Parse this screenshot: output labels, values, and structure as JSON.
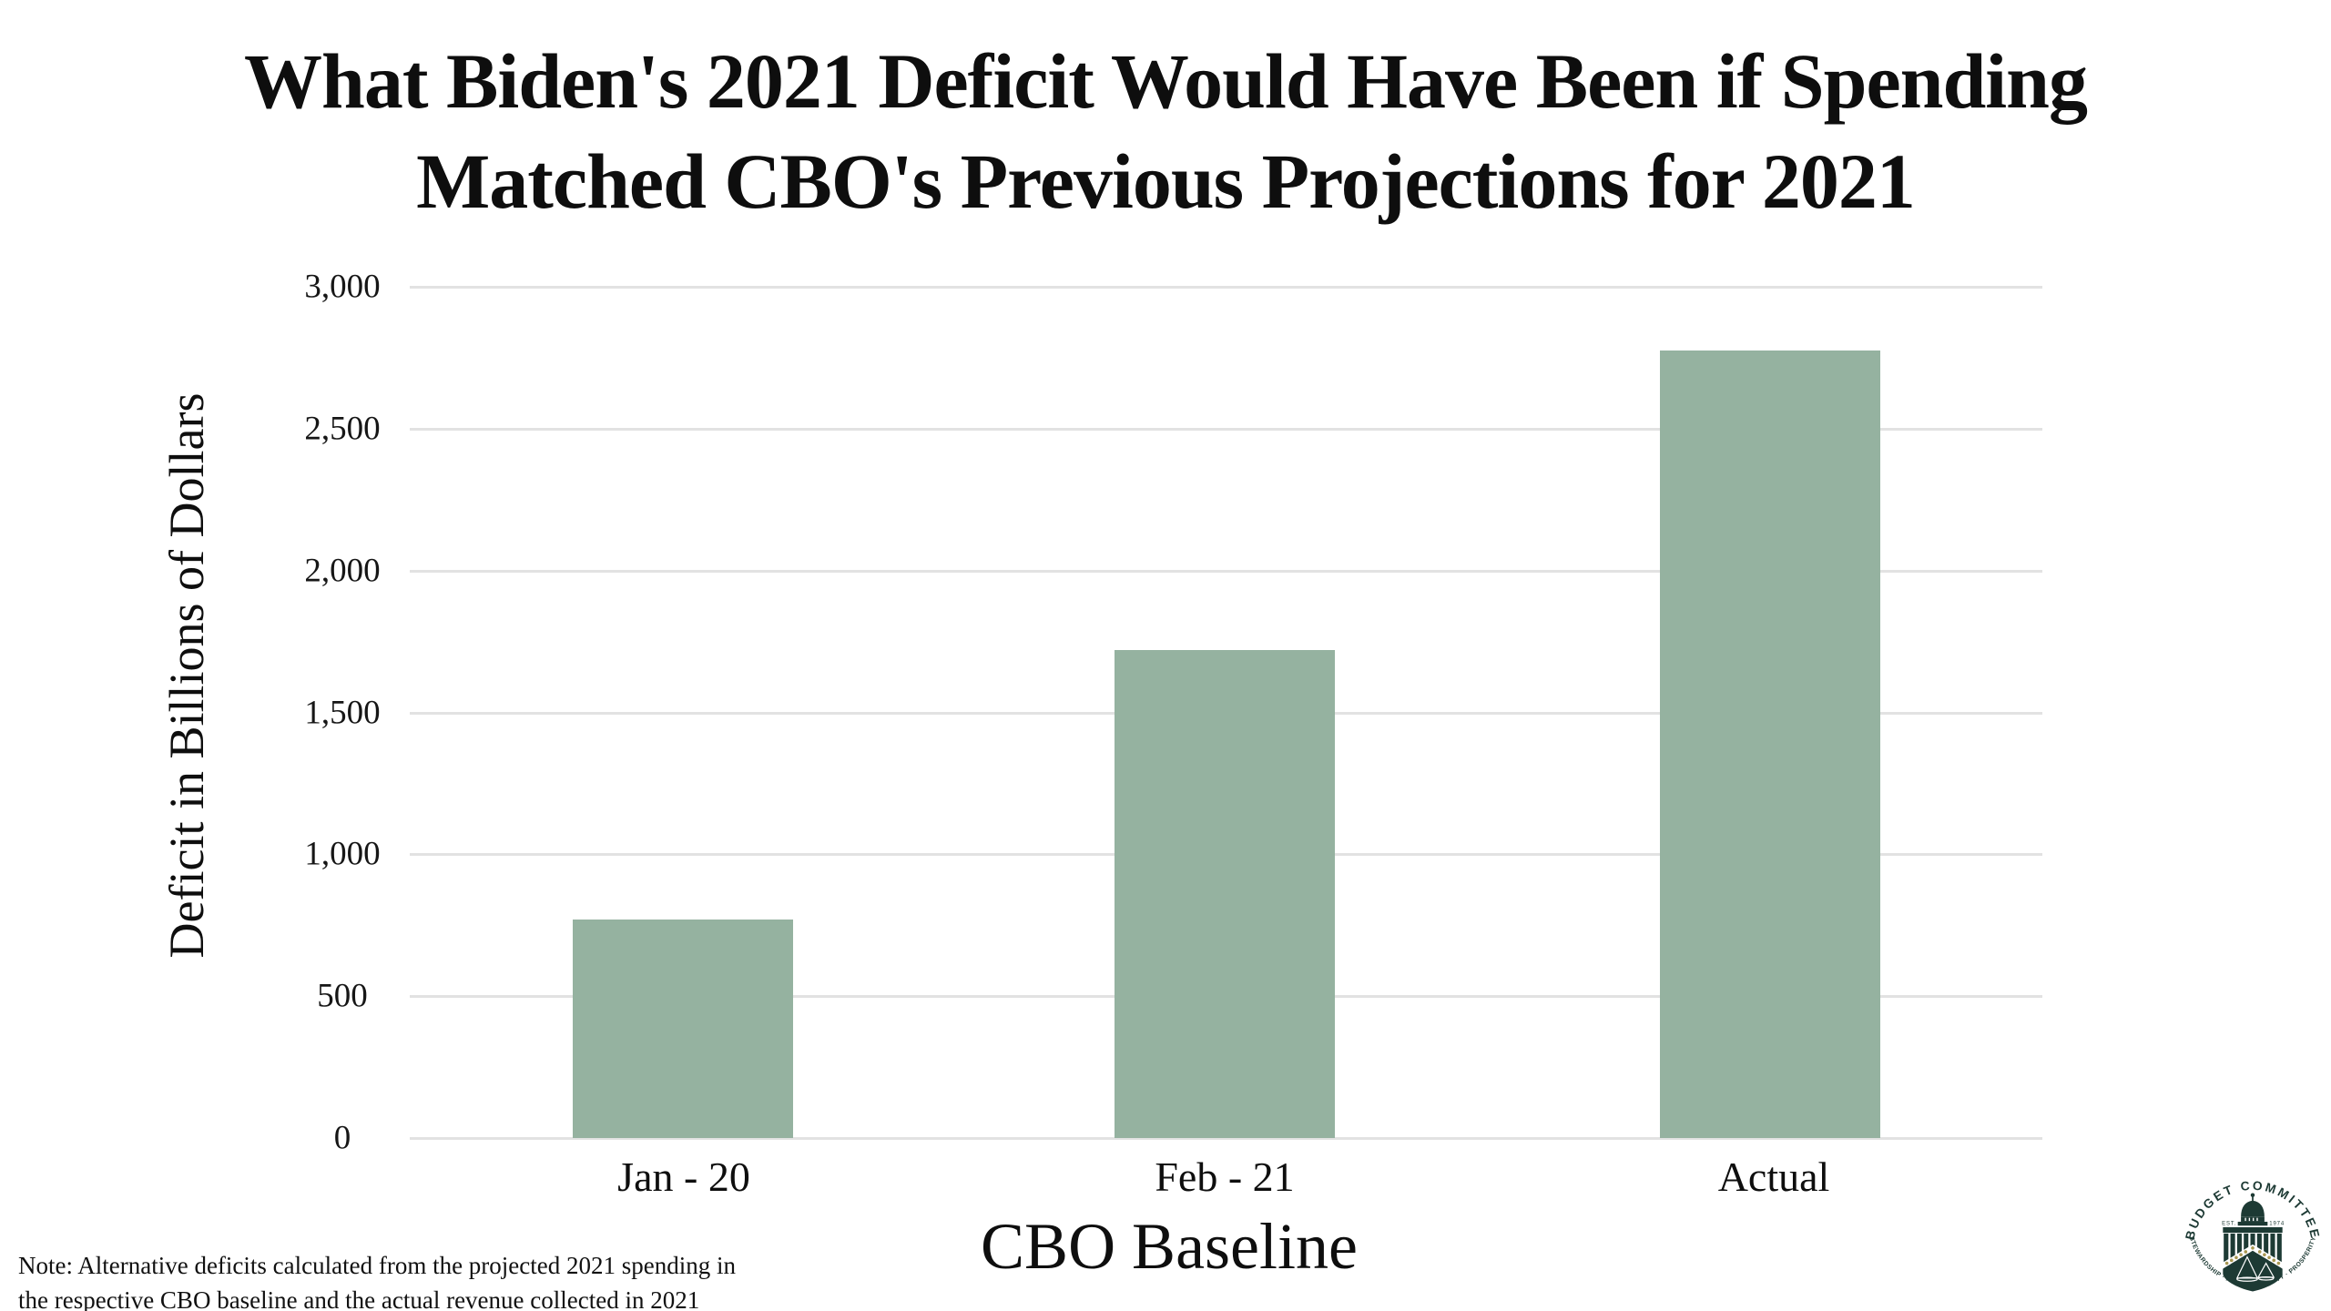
{
  "title": {
    "line1": "What Biden's 2021 Deficit Would Have Been if Spending",
    "line2": "Matched CBO's Previous Projections for 2021"
  },
  "chart_data": {
    "type": "bar",
    "categories": [
      "Jan - 20",
      "Feb - 21",
      "Actual"
    ],
    "values": [
      770,
      1720,
      2775
    ],
    "title": "What Biden's 2021 Deficit Would Have Been if Spending Matched CBO's Previous Projections for 2021",
    "xlabel": "CBO Baseline",
    "ylabel": "Deficit in Billions of Dollars",
    "ylim": [
      0,
      3000
    ],
    "ytick_labels": [
      "3,000",
      "2,500",
      "2,000",
      "1,500",
      "1,000",
      "500",
      "0"
    ],
    "grid": "horizontal gridlines only",
    "legend": "none",
    "bar_color": "#95b2a0",
    "gridline_color": "#e2e2e2"
  },
  "note": {
    "line1": "Note: Alternative deficits calculated from the projected 2021 spending in",
    "line2": "the respective CBO baseline and the actual revenue collected in 2021"
  },
  "logo": {
    "arc_top": "BUDGET COMMITTEE",
    "arc_bottom": "· STEWARDSHIP · ACCOUNTABILITY · PROSPERITY ·",
    "est_left": "EST.",
    "est_right": "1974",
    "seal_color": "#1d3a34",
    "star_color": "#a89750"
  }
}
